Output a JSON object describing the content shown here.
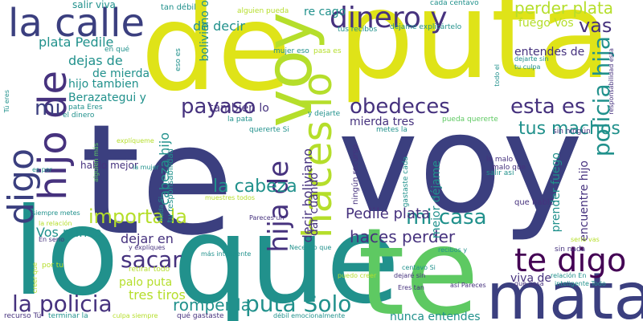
{
  "palette": {
    "navy": "#3b3f7f",
    "indigo": "#46327e",
    "blue": "#3b528b",
    "teal": "#21918c",
    "green": "#5ec962",
    "lime": "#b5de2b",
    "yellow": "#dfe318",
    "purple": "#440154",
    "slate": "#365c8d"
  },
  "words": [
    "te",
    "voy",
    "de",
    "puta",
    "lo",
    "que",
    "te",
    "matar",
    "voy",
    "la calle",
    "dinero y",
    "perder plata",
    "vas",
    "hijo de",
    "digo",
    "haces lo",
    "policia hija",
    "mi",
    "payaso",
    "obedeces",
    "esta es",
    "tus machos",
    "te digo",
    "mi casa",
    "importa la",
    "hija de",
    "la cabeza",
    "sacar",
    "la policia",
    "puta Solo",
    "romper la",
    "haces perder",
    "Pedile plata",
    "decir boliviano",
    "dejar en",
    "Vos nunca",
    "plata Pedile",
    "dejas de",
    "de mierda",
    "hijo tambien",
    "Berazategui y",
    "cabeza hijo",
    "de decir",
    "re cago",
    "fuego Vos",
    "entendes de",
    "mierda tres",
    "tambien lo",
    "tres tiros",
    "palo puta",
    "nunca entendes",
    "viva de",
    "salir viva",
    "tan débil",
    "boliviano o",
    "alguien pueda",
    "cada centavo",
    "tus recibos",
    "déjame explicártelo",
    "mujer eso",
    "pasa es",
    "en qué",
    "eso es",
    "responsabilidad esta",
    "que hablo",
    "hablo mejor",
    "encuentre hijo",
    "prender fuego",
    "mejor déjame",
    "dar cuando",
    "ningún recurso",
    "gastaste cada",
    "tu responsabilidad",
    "explíqueme",
    "la mujer",
    "muestres todos",
    "Nada Si",
    "salir así",
    "lo malo",
    "malo que",
    "sin ningún",
    "querertе Si",
    "pueda quererte",
    "metes la",
    "la pata",
    "y dejarte",
    "pata Eres",
    "el dinero",
    "Tú eres",
    "es por",
    "alguien más",
    "siempre metes",
    "la relación",
    "En serio",
    "por tu",
    "creer que",
    "recurso Tú",
    "terminar la",
    "culpa siempre",
    "qué gastaste",
    "débil emocionalmente",
    "Eres tan",
    "así Pareces",
    "que pasa",
    "relación En",
    "inteligente Todo",
    "serio vas",
    "sin nada",
    "dejaré sin",
    "centavo Si",
    "puedo creer",
    "retirar todo",
    "y explíques",
    "más inteligente",
    "Necesito que",
    "recibos y",
    "Pareces un",
    "dejarte sin",
    "tu culpa",
    "todo el"
  ]
}
